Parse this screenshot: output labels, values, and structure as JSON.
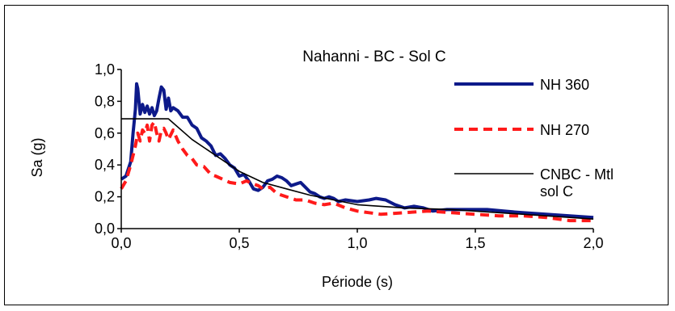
{
  "chart_data": {
    "type": "line",
    "title": "Nahanni - BC - Sol C",
    "xlabel": "Période (s)",
    "ylabel": "Sa (g)",
    "xlim": [
      0.0,
      2.0
    ],
    "ylim": [
      0.0,
      1.0
    ],
    "x_ticks": [
      "0,0",
      "0,5",
      "1,0",
      "1,5",
      "2,0"
    ],
    "y_ticks": [
      "0,0",
      "0,2",
      "0,4",
      "0,6",
      "0,8",
      "1,0"
    ],
    "legend_position": "right",
    "grid": false,
    "series": [
      {
        "name": "NH 360",
        "color": "#0d1a8a",
        "style": "solid-thick",
        "points": [
          [
            0.0,
            0.31
          ],
          [
            0.02,
            0.33
          ],
          [
            0.04,
            0.42
          ],
          [
            0.05,
            0.6
          ],
          [
            0.06,
            0.75
          ],
          [
            0.065,
            0.91
          ],
          [
            0.07,
            0.88
          ],
          [
            0.08,
            0.72
          ],
          [
            0.09,
            0.78
          ],
          [
            0.1,
            0.73
          ],
          [
            0.11,
            0.77
          ],
          [
            0.12,
            0.72
          ],
          [
            0.13,
            0.76
          ],
          [
            0.14,
            0.71
          ],
          [
            0.15,
            0.74
          ],
          [
            0.16,
            0.82
          ],
          [
            0.17,
            0.89
          ],
          [
            0.18,
            0.87
          ],
          [
            0.19,
            0.75
          ],
          [
            0.2,
            0.82
          ],
          [
            0.21,
            0.74
          ],
          [
            0.22,
            0.76
          ],
          [
            0.24,
            0.74
          ],
          [
            0.26,
            0.7
          ],
          [
            0.28,
            0.7
          ],
          [
            0.3,
            0.65
          ],
          [
            0.32,
            0.63
          ],
          [
            0.34,
            0.57
          ],
          [
            0.36,
            0.55
          ],
          [
            0.38,
            0.52
          ],
          [
            0.4,
            0.46
          ],
          [
            0.42,
            0.47
          ],
          [
            0.44,
            0.44
          ],
          [
            0.46,
            0.4
          ],
          [
            0.48,
            0.38
          ],
          [
            0.5,
            0.33
          ],
          [
            0.52,
            0.34
          ],
          [
            0.54,
            0.3
          ],
          [
            0.56,
            0.25
          ],
          [
            0.58,
            0.24
          ],
          [
            0.6,
            0.26
          ],
          [
            0.62,
            0.3
          ],
          [
            0.64,
            0.31
          ],
          [
            0.66,
            0.33
          ],
          [
            0.68,
            0.32
          ],
          [
            0.7,
            0.3
          ],
          [
            0.72,
            0.27
          ],
          [
            0.74,
            0.28
          ],
          [
            0.76,
            0.29
          ],
          [
            0.78,
            0.26
          ],
          [
            0.8,
            0.23
          ],
          [
            0.82,
            0.22
          ],
          [
            0.84,
            0.2
          ],
          [
            0.86,
            0.19
          ],
          [
            0.88,
            0.2
          ],
          [
            0.9,
            0.19
          ],
          [
            0.92,
            0.17
          ],
          [
            0.95,
            0.18
          ],
          [
            1.0,
            0.17
          ],
          [
            1.05,
            0.18
          ],
          [
            1.08,
            0.19
          ],
          [
            1.12,
            0.18
          ],
          [
            1.16,
            0.15
          ],
          [
            1.2,
            0.13
          ],
          [
            1.24,
            0.14
          ],
          [
            1.28,
            0.13
          ],
          [
            1.32,
            0.11
          ],
          [
            1.38,
            0.12
          ],
          [
            1.45,
            0.12
          ],
          [
            1.55,
            0.12
          ],
          [
            1.62,
            0.11
          ],
          [
            1.7,
            0.1
          ],
          [
            1.8,
            0.09
          ],
          [
            1.9,
            0.08
          ],
          [
            2.0,
            0.07
          ]
        ]
      },
      {
        "name": "NH 270",
        "color": "#ff1a1a",
        "style": "dashed-thick",
        "points": [
          [
            0.0,
            0.25
          ],
          [
            0.02,
            0.3
          ],
          [
            0.04,
            0.4
          ],
          [
            0.05,
            0.46
          ],
          [
            0.06,
            0.52
          ],
          [
            0.07,
            0.6
          ],
          [
            0.08,
            0.55
          ],
          [
            0.09,
            0.62
          ],
          [
            0.1,
            0.6
          ],
          [
            0.11,
            0.65
          ],
          [
            0.12,
            0.55
          ],
          [
            0.13,
            0.65
          ],
          [
            0.14,
            0.67
          ],
          [
            0.15,
            0.6
          ],
          [
            0.16,
            0.55
          ],
          [
            0.17,
            0.62
          ],
          [
            0.18,
            0.63
          ],
          [
            0.19,
            0.6
          ],
          [
            0.2,
            0.56
          ],
          [
            0.22,
            0.62
          ],
          [
            0.24,
            0.55
          ],
          [
            0.26,
            0.5
          ],
          [
            0.28,
            0.46
          ],
          [
            0.3,
            0.44
          ],
          [
            0.32,
            0.4
          ],
          [
            0.35,
            0.39
          ],
          [
            0.38,
            0.34
          ],
          [
            0.4,
            0.33
          ],
          [
            0.43,
            0.31
          ],
          [
            0.46,
            0.29
          ],
          [
            0.5,
            0.28
          ],
          [
            0.53,
            0.3
          ],
          [
            0.56,
            0.28
          ],
          [
            0.58,
            0.27
          ],
          [
            0.6,
            0.25
          ],
          [
            0.63,
            0.26
          ],
          [
            0.66,
            0.22
          ],
          [
            0.7,
            0.2
          ],
          [
            0.74,
            0.18
          ],
          [
            0.78,
            0.18
          ],
          [
            0.82,
            0.16
          ],
          [
            0.86,
            0.15
          ],
          [
            0.9,
            0.16
          ],
          [
            0.95,
            0.13
          ],
          [
            1.0,
            0.11
          ],
          [
            1.05,
            0.1
          ],
          [
            1.1,
            0.09
          ],
          [
            1.2,
            0.1
          ],
          [
            1.3,
            0.11
          ],
          [
            1.4,
            0.1
          ],
          [
            1.5,
            0.09
          ],
          [
            1.6,
            0.08
          ],
          [
            1.7,
            0.08
          ],
          [
            1.8,
            0.07
          ],
          [
            1.9,
            0.05
          ],
          [
            2.0,
            0.05
          ]
        ]
      },
      {
        "name": "CNBC - Mtl sol C",
        "name_lines": [
          "CNBC - Mtl",
          "sol C"
        ],
        "color": "#000000",
        "style": "solid-thin",
        "points": [
          [
            0.0,
            0.69
          ],
          [
            0.2,
            0.69
          ],
          [
            0.3,
            0.56
          ],
          [
            0.4,
            0.46
          ],
          [
            0.5,
            0.36
          ],
          [
            0.6,
            0.29
          ],
          [
            0.7,
            0.25
          ],
          [
            0.8,
            0.21
          ],
          [
            0.9,
            0.18
          ],
          [
            1.0,
            0.15
          ],
          [
            1.2,
            0.13
          ],
          [
            1.4,
            0.12
          ],
          [
            1.6,
            0.1
          ],
          [
            1.8,
            0.08
          ],
          [
            2.0,
            0.06
          ]
        ]
      }
    ]
  }
}
